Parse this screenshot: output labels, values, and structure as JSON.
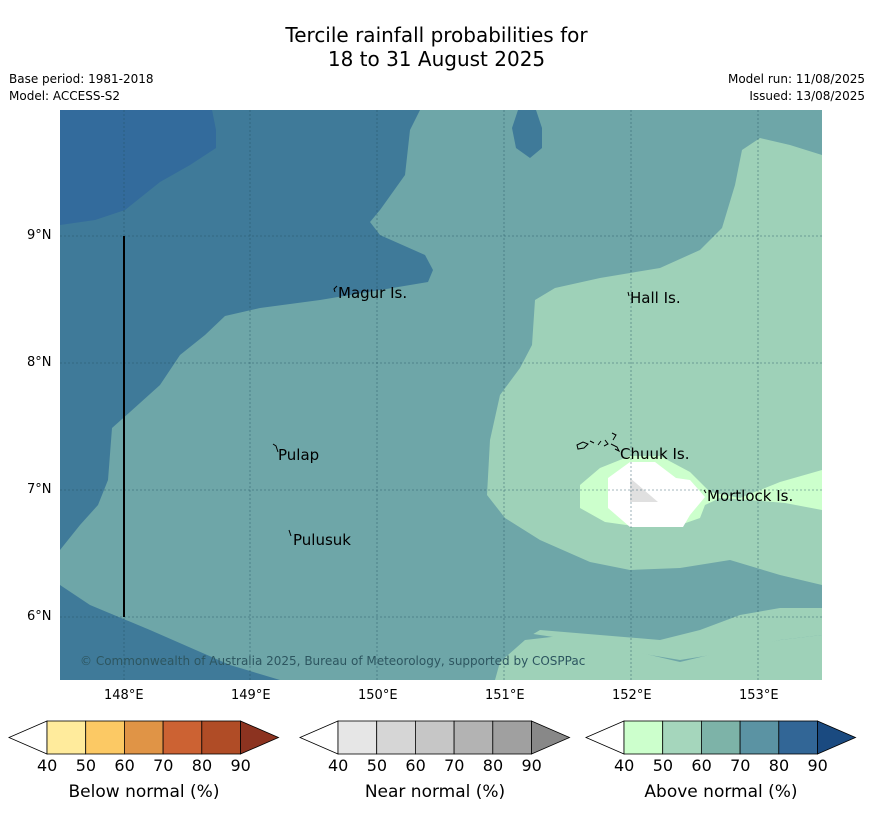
{
  "title": {
    "line1": "Tercile rainfall probabilities for",
    "line2": "18 to 31 August 2025"
  },
  "meta": {
    "base_period": "Base period: 1981-2018",
    "model": "Model: ACCESS-S2",
    "model_run": "Model run: 11/08/2025",
    "issued": "Issued: 13/08/2025"
  },
  "map": {
    "lat_ticks": [
      "9°N",
      "8°N",
      "7°N",
      "6°N"
    ],
    "lon_ticks": [
      "148°E",
      "149°E",
      "150°E",
      "151°E",
      "152°E",
      "153°E"
    ],
    "places": [
      {
        "name": "Magur Is."
      },
      {
        "name": "Hall Is."
      },
      {
        "name": "Pulap"
      },
      {
        "name": "Chuuk Is."
      },
      {
        "name": "Mortlock Is."
      },
      {
        "name": "Pulusuk"
      }
    ],
    "copyright": "© Commonwealth of Australia 2025, Bureau of Meteorology, supported by COSPPac",
    "colors": {
      "above_80": "#336b9c",
      "above_70": "#3f7a99",
      "above_60": "#6ea6a8",
      "above_50": "#9ed1b8",
      "above_40": "#ccffcc",
      "near_40": "#e0e0e0",
      "white": "#ffffff"
    }
  },
  "colorbars": [
    {
      "label": "Below normal (%)",
      "ticks": [
        "40",
        "50",
        "60",
        "70",
        "80",
        "90"
      ],
      "colors": [
        "#ffeb9c",
        "#fcc964",
        "#e09446",
        "#cc6233",
        "#b04c26",
        "#8c3320"
      ]
    },
    {
      "label": "Near normal (%)",
      "ticks": [
        "40",
        "50",
        "60",
        "70",
        "80",
        "90"
      ],
      "colors": [
        "#e6e6e6",
        "#d6d6d6",
        "#c6c6c6",
        "#b3b3b3",
        "#a0a0a0",
        "#888888"
      ]
    },
    {
      "label": "Above normal (%)",
      "ticks": [
        "40",
        "50",
        "60",
        "70",
        "80",
        "90"
      ],
      "colors": [
        "#ccffcc",
        "#a5d6bc",
        "#7db3a8",
        "#5b93a3",
        "#326696",
        "#1a4a80"
      ]
    }
  ]
}
